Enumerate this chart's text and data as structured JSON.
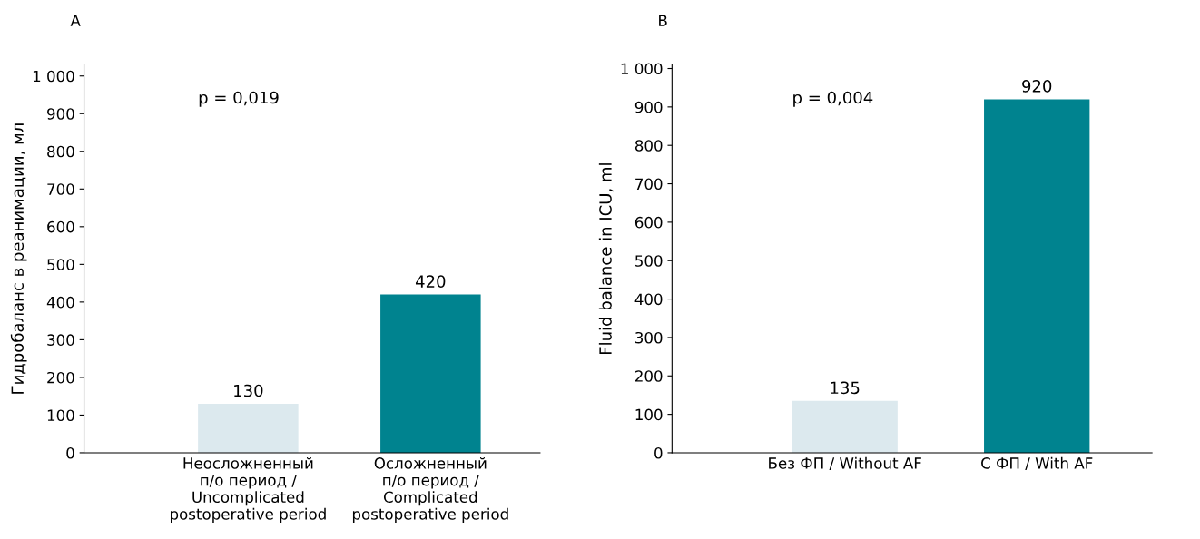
{
  "chart_data": [
    {
      "type": "bar",
      "title": "A",
      "ylabel": "Гидробаланс в реанимации, мл",
      "categories": [
        "Неосложненный\nп/о период /\nUncomplicated\npostoperative period",
        "Осложненный\nп/о период /\nComplicated\npostoperative period"
      ],
      "values": [
        130,
        420
      ],
      "colors": [
        "#dce9ee",
        "#00838f"
      ],
      "ylim": [
        0,
        1030
      ],
      "yticks": [
        0,
        100,
        200,
        300,
        400,
        500,
        600,
        700,
        800,
        900,
        {
          "value": 1000,
          "label": "1 000"
        }
      ],
      "grid": false,
      "data_labels": true,
      "annotations": [
        "p = 0,019"
      ]
    },
    {
      "type": "bar",
      "title": "B",
      "ylabel": "Fluid balance in ICU, ml",
      "categories": [
        "Без ФП / Without AF",
        "С ФП / With AF"
      ],
      "values": [
        135,
        920
      ],
      "colors": [
        "#dce9ee",
        "#00838f"
      ],
      "ylim": [
        0,
        1010
      ],
      "yticks": [
        0,
        100,
        200,
        300,
        400,
        500,
        600,
        700,
        800,
        900,
        {
          "value": 1000,
          "label": "1 000"
        }
      ],
      "grid": false,
      "data_labels": true,
      "annotations": [
        "p = 0,004"
      ]
    }
  ]
}
